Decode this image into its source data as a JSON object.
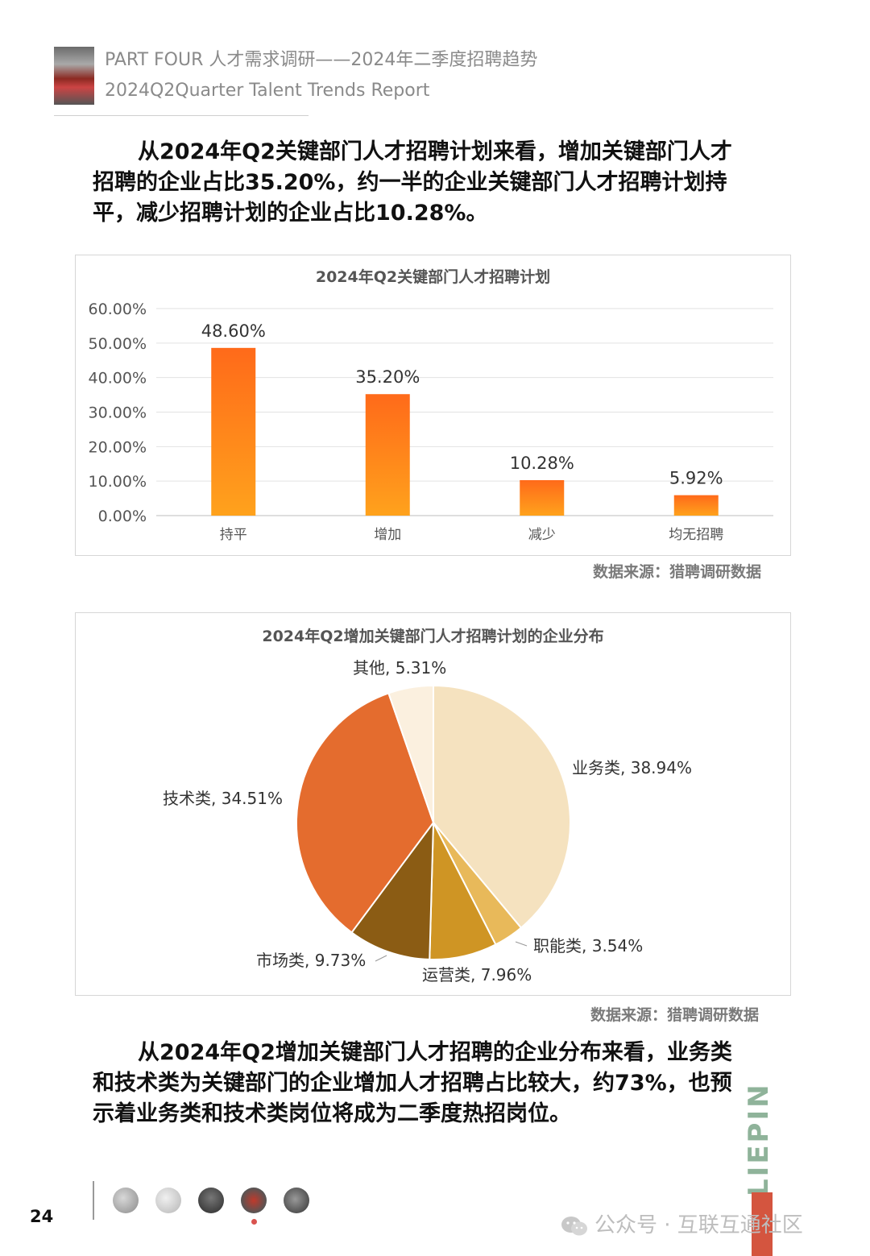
{
  "header": {
    "line1": "PART FOUR 人才需求调研——2024年二季度招聘趋势",
    "line2": "2024Q2Quarter Talent Trends Report"
  },
  "intro_paragraph": "从2024年Q2关键部门人才招聘计划来看，增加关键部门人才招聘的企业占比35.20%，约一半的企业关键部门人才招聘计划持平，减少招聘计划的企业占比10.28%。",
  "closing_paragraph": "从2024年Q2增加关键部门人才招聘的企业分布来看，业务类和技术类为关键部门的企业增加人才招聘占比较大，约73%，也预示着业务类和技术类岗位将成为二季度热招岗位。",
  "chart_data": [
    {
      "type": "bar",
      "title": "2024年Q2关键部门人才招聘计划",
      "categories": [
        "持平",
        "增加",
        "减少",
        "均无招聘"
      ],
      "values": [
        48.6,
        35.2,
        10.28,
        5.92
      ],
      "value_labels": [
        "48.60%",
        "35.20%",
        "10.28%",
        "5.92%"
      ],
      "y_ticks": [
        "0.00%",
        "10.00%",
        "20.00%",
        "30.00%",
        "40.00%",
        "50.00%",
        "60.00%"
      ],
      "ylim": [
        0,
        60
      ],
      "grid": true,
      "bar_gradient": [
        "#ff6a1a",
        "#ffa21c"
      ]
    },
    {
      "type": "pie",
      "title": "2024年Q2增加关键部门人才招聘计划的企业分布",
      "slices": [
        {
          "label": "业务类, 38.94%",
          "value": 38.94,
          "color": "#f5e2bf"
        },
        {
          "label": "职能类, 3.54%",
          "value": 3.54,
          "color": "#e8b95a"
        },
        {
          "label": "运营类, 7.96%",
          "value": 7.96,
          "color": "#cf9524"
        },
        {
          "label": "市场类, 9.73%",
          "value": 9.73,
          "color": "#8b5c14"
        },
        {
          "label": "技术类, 34.51%",
          "value": 34.51,
          "color": "#e46c2e"
        },
        {
          "label": "其他, 5.31%",
          "value": 5.31,
          "color": "#fbf0df"
        }
      ]
    }
  ],
  "source_label": "数据来源：猎聘调研数据",
  "footer": {
    "page_number": "24",
    "brand": "LIEPIN",
    "wechat_text": "公众号 · 互联互通社区"
  }
}
